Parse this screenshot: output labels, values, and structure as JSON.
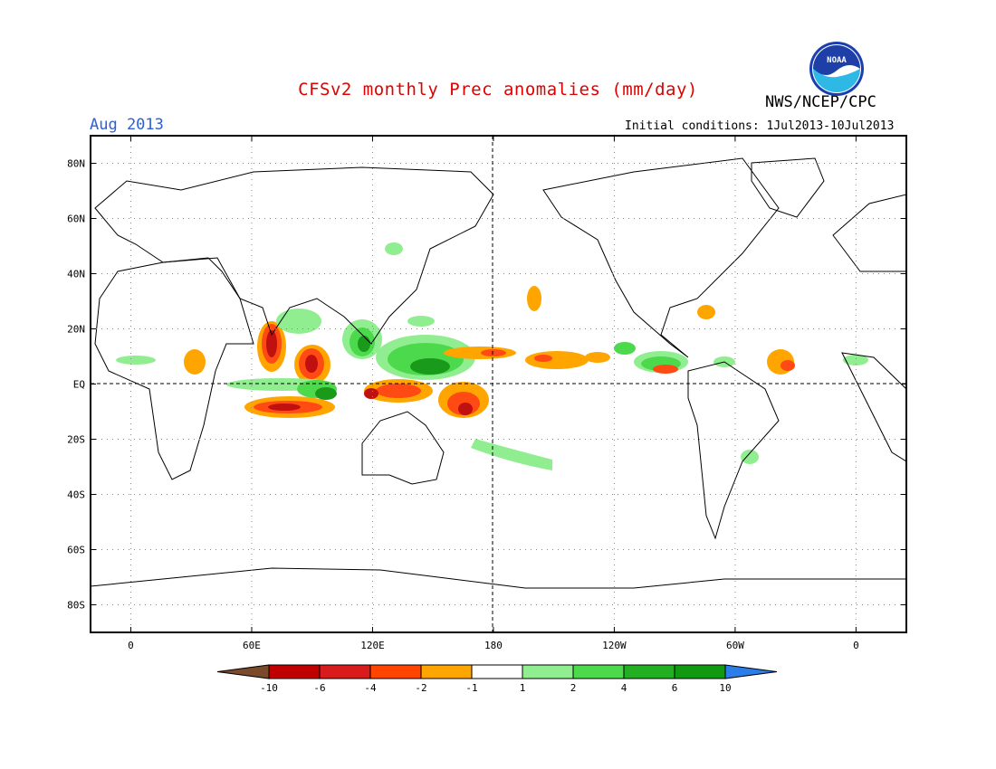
{
  "header": {
    "title": "CFSv2 monthly Prec anomalies (mm/day)",
    "valid_month": "Aug 2013",
    "initial_conditions": "Initial conditions: 1Jul2013-10Jul2013",
    "agency": "NWS/NCEP/CPC",
    "logo_text": "NOAA"
  },
  "map": {
    "lat_labels": [
      "80N",
      "60N",
      "40N",
      "20N",
      "EQ",
      "20S",
      "40S",
      "60S",
      "80S"
    ],
    "lat_values": [
      80,
      60,
      40,
      20,
      0,
      -20,
      -40,
      -60,
      -80
    ],
    "lon_labels": [
      "0",
      "60E",
      "120E",
      "180",
      "120W",
      "60W",
      "0"
    ],
    "lon_values": [
      0,
      60,
      120,
      180,
      240,
      300,
      360
    ],
    "lon_range": [
      -20,
      385
    ],
    "lat_range": [
      -90,
      90
    ],
    "grid": "dotted",
    "reference_lines": "dashed equator and 180° meridian"
  },
  "colorbar": {
    "tick_labels": [
      "-10",
      "-6",
      "-4",
      "-2",
      "-1",
      "1",
      "2",
      "4",
      "6",
      "10"
    ],
    "colors": [
      "#7b4a2a",
      "#c00000",
      "#d81c1c",
      "#ff4500",
      "#ffa500",
      "#ffffff",
      "#90ee90",
      "#4cd94c",
      "#22b022",
      "#119911",
      "#2b7de9"
    ]
  },
  "colors": {
    "title": "#e00000",
    "month": "#2e5fd6",
    "dry_strong": "#c01010",
    "dry_mid": "#ff4a14",
    "dry_weak": "#ffa500",
    "wet_weak": "#90ee90",
    "wet_mid": "#4cd94c",
    "wet_strong": "#1a9a1a"
  }
}
